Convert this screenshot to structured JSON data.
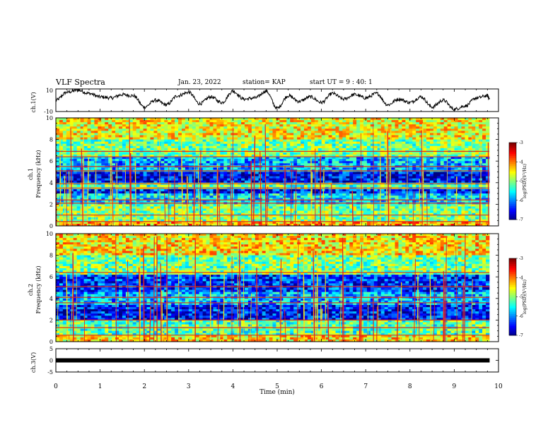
{
  "header": {
    "title": "VLF Spectra",
    "date": "Jan. 23, 2022",
    "station": "station= KAP",
    "start": "start UT =  9 : 40: 1"
  },
  "chart_data": [
    {
      "type": "line",
      "panel": "ch1-waveform",
      "ylabel": "ch.1(V)",
      "ylim": [
        -10,
        10
      ],
      "ytick_labels": [
        "10",
        "-10"
      ],
      "xlim": [
        0,
        10
      ],
      "x": [
        0,
        0.25,
        0.5,
        0.75,
        1.0,
        1.25,
        1.5,
        1.75,
        2.0,
        2.25,
        2.5,
        2.75,
        3.0,
        3.25,
        3.5,
        3.75,
        4.0,
        4.25,
        4.5,
        4.75,
        5.0,
        5.25,
        5.5,
        5.75,
        6.0,
        6.25,
        6.5,
        6.75,
        7.0,
        7.25,
        7.5,
        7.75,
        8.0,
        8.25,
        8.5,
        8.75,
        9.0,
        9.25,
        9.5,
        9.75,
        9.8
      ],
      "values": [
        0,
        7,
        9,
        6,
        3,
        2,
        5,
        4,
        -6,
        0,
        -4,
        4,
        7,
        -3,
        3,
        -2,
        8,
        1,
        2,
        8,
        -7,
        4,
        -1,
        3,
        -2,
        6,
        1,
        5,
        2,
        6,
        -4,
        1,
        -2,
        3,
        -6,
        0,
        -8,
        -5,
        2,
        4,
        1
      ]
    },
    {
      "type": "heatmap",
      "panel": "ch1-spectrogram",
      "ylabel": "ch.1\nFrequency (kHz)",
      "ylim": [
        0,
        10
      ],
      "ytick_labels": [
        "0",
        "2",
        "4",
        "6",
        "8",
        "10"
      ],
      "xlim": [
        0,
        10
      ],
      "colorbar": {
        "label": "log(PSD)(V²/Hz)",
        "range": [
          -7,
          -3
        ],
        "tick_labels": [
          "-3",
          "-4",
          "-5",
          "-6",
          "-7"
        ]
      },
      "horizontal_lines_khz": [
        0.4,
        1.0,
        2.1,
        2.4,
        3.5,
        3.9,
        5.1,
        5.5,
        6.4,
        6.9
      ],
      "level_bands": [
        {
          "from_khz": 0,
          "to_khz": 0.5,
          "level": -4.2
        },
        {
          "from_khz": 0.5,
          "to_khz": 2.0,
          "level": -5.0
        },
        {
          "from_khz": 2.0,
          "to_khz": 3.0,
          "level": -5.6
        },
        {
          "from_khz": 3.0,
          "to_khz": 3.5,
          "level": -6.4
        },
        {
          "from_khz": 3.5,
          "to_khz": 4.0,
          "level": -5.2
        },
        {
          "from_khz": 4.0,
          "to_khz": 5.0,
          "level": -6.5
        },
        {
          "from_khz": 5.0,
          "to_khz": 6.5,
          "level": -5.8
        },
        {
          "from_khz": 6.5,
          "to_khz": 8.0,
          "level": -5.0
        },
        {
          "from_khz": 8.0,
          "to_khz": 10.0,
          "level": -4.5
        }
      ]
    },
    {
      "type": "heatmap",
      "panel": "ch2-spectrogram",
      "ylabel": "ch.2\nFrequency (kHz)",
      "ylim": [
        0,
        10
      ],
      "ytick_labels": [
        "0",
        "2",
        "4",
        "6",
        "8",
        "10"
      ],
      "xlim": [
        0,
        10
      ],
      "colorbar": {
        "label": "log(PSD)(V²/Hz)",
        "range": [
          -7,
          -3
        ],
        "tick_labels": [
          "-3",
          "-4",
          "-5",
          "-6",
          "-7"
        ]
      },
      "horizontal_lines_khz": [
        0.6,
        1.3,
        2.0,
        3.6,
        4.1,
        5.1,
        6.4
      ],
      "level_bands": [
        {
          "from_khz": 0,
          "to_khz": 0.6,
          "level": -4.4
        },
        {
          "from_khz": 0.6,
          "to_khz": 2.0,
          "level": -5.2
        },
        {
          "from_khz": 2.0,
          "to_khz": 3.4,
          "level": -6.4
        },
        {
          "from_khz": 3.4,
          "to_khz": 4.6,
          "level": -5.8
        },
        {
          "from_khz": 4.6,
          "to_khz": 6.2,
          "level": -6.3
        },
        {
          "from_khz": 6.2,
          "to_khz": 8.0,
          "level": -5.0
        },
        {
          "from_khz": 8.0,
          "to_khz": 10.0,
          "level": -4.4
        }
      ]
    },
    {
      "type": "line",
      "panel": "ch3-waveform",
      "ylabel": "ch.3(V)",
      "ylim": [
        -5,
        5
      ],
      "ytick_labels": [
        "5",
        "0",
        "-5"
      ],
      "xlim": [
        0,
        10
      ],
      "xlabel": "Time  (min)",
      "xtick_labels": [
        "0",
        "1",
        "2",
        "3",
        "4",
        "5",
        "6",
        "7",
        "8",
        "9",
        "10"
      ],
      "x": [
        0,
        9.8
      ],
      "values": [
        0,
        0
      ]
    }
  ]
}
